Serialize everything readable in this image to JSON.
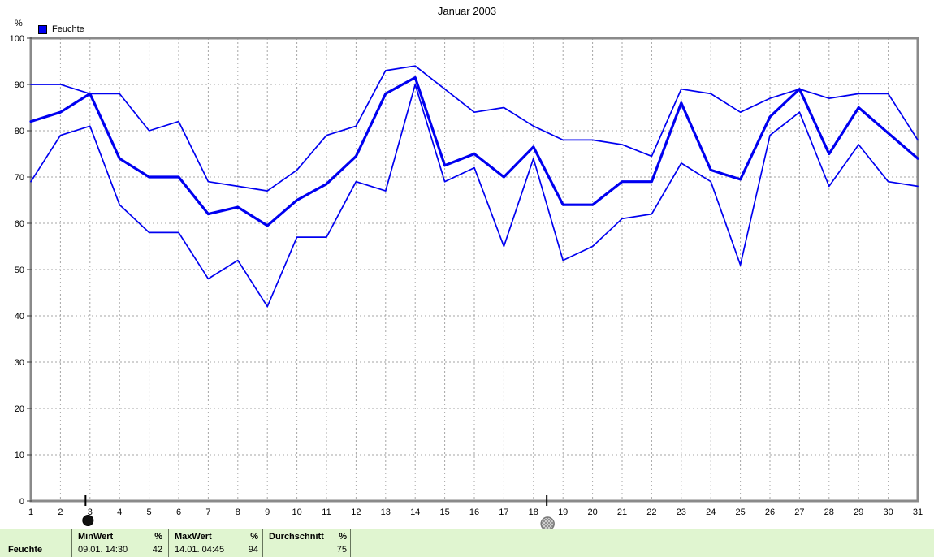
{
  "window": {
    "title": "Januar 2003"
  },
  "chart": {
    "unit_label": "%",
    "legend": {
      "label": "Feuchte",
      "color": "#0000f0"
    }
  },
  "chart_data": {
    "type": "line",
    "title": "Januar 2003",
    "ylabel": "%",
    "xlabel": "",
    "x": [
      1,
      2,
      3,
      4,
      5,
      6,
      7,
      8,
      9,
      10,
      11,
      12,
      13,
      14,
      15,
      16,
      17,
      18,
      19,
      20,
      21,
      22,
      23,
      24,
      25,
      26,
      27,
      28,
      29,
      30,
      31
    ],
    "ylim": [
      0,
      100
    ],
    "ytick_step": 10,
    "grid": true,
    "legend_position": "top-left",
    "line_color": "#0000f0",
    "series": [
      {
        "name": "MaxWert",
        "width": "thin",
        "values": [
          90,
          90,
          88,
          88,
          80,
          82,
          69,
          68,
          67,
          71.5,
          79,
          81,
          93,
          94,
          89,
          84,
          85,
          81,
          78,
          78,
          77,
          74.5,
          89,
          88,
          84,
          87,
          89,
          87,
          88,
          88,
          78
        ]
      },
      {
        "name": "Feuchte",
        "width": "thick",
        "values": [
          82,
          84,
          88,
          74,
          70,
          70,
          62,
          63.5,
          59.5,
          65,
          68.5,
          74.5,
          88,
          91.5,
          72.5,
          75,
          70,
          76.5,
          64,
          64,
          69,
          69,
          86,
          71.5,
          69.5,
          83,
          89,
          75,
          85,
          79.5,
          74
        ]
      },
      {
        "name": "MinWert",
        "width": "thin",
        "values": [
          69,
          79,
          81,
          64,
          58,
          58,
          48,
          52,
          42,
          57,
          57,
          69,
          67,
          90,
          69,
          72,
          55,
          74,
          52,
          55,
          61,
          62,
          73,
          69,
          51,
          79,
          84,
          68,
          77,
          69,
          68
        ]
      }
    ],
    "range_markers": [
      {
        "style": "solid",
        "day": 2.85
      },
      {
        "style": "hatched",
        "day": 18.45
      }
    ]
  },
  "table": {
    "bg_color": "#e0f5d0",
    "row_label": "Feuchte",
    "min": {
      "header": "MinWert",
      "unit": "%",
      "time": "09.01.  14:30",
      "value": "42"
    },
    "max": {
      "header": "MaxWert",
      "unit": "%",
      "time": "14.01.  04:45",
      "value": "94"
    },
    "avg": {
      "header": "Durchschnitt",
      "unit": "%",
      "value": "75"
    }
  }
}
